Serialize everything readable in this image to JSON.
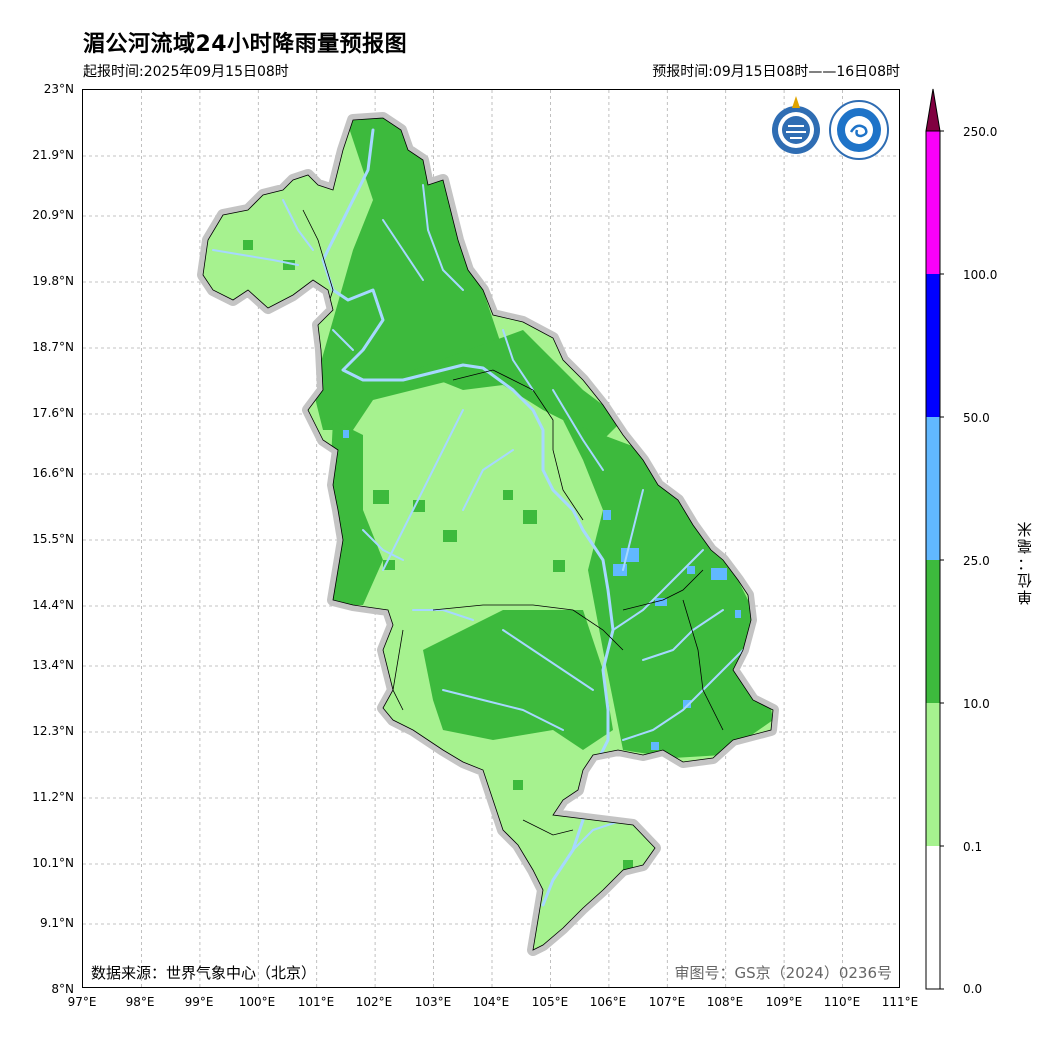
{
  "header": {
    "title": "湄公河流域24小时降雨量预报图",
    "issue_time": "起报时间:2025年09月15日08时",
    "valid_time": "预报时间:09月15日08时——16日08时"
  },
  "footer": {
    "source": "数据来源：世界气象中心（北京）",
    "review_number": "审图号：GS京（2024）0236号"
  },
  "map": {
    "lat_ticks": [
      "23°N",
      "21.9°N",
      "20.9°N",
      "19.8°N",
      "18.7°N",
      "17.6°N",
      "16.6°N",
      "15.5°N",
      "14.4°N",
      "13.4°N",
      "12.3°N",
      "11.2°N",
      "10.1°N",
      "9.1°N",
      "8°N"
    ],
    "lon_ticks": [
      "97°E",
      "98°E",
      "99°E",
      "100°E",
      "101°E",
      "102°E",
      "103°E",
      "104°E",
      "105°E",
      "106°E",
      "107°E",
      "108°E",
      "109°E",
      "110°E",
      "111°E"
    ],
    "logos": [
      "wmo-logo-icon",
      "cma-logo-icon"
    ]
  },
  "legend": {
    "unit": "单位：毫米",
    "ticks": [
      "250.0",
      "100.0",
      "50.0",
      "25.0",
      "10.0",
      "0.1",
      "0.0"
    ],
    "colors": [
      "#ffffff",
      "#a6f28f",
      "#3dba3d",
      "#61b8ff",
      "#0000ff",
      "#fa00fa",
      "#800040"
    ]
  }
}
